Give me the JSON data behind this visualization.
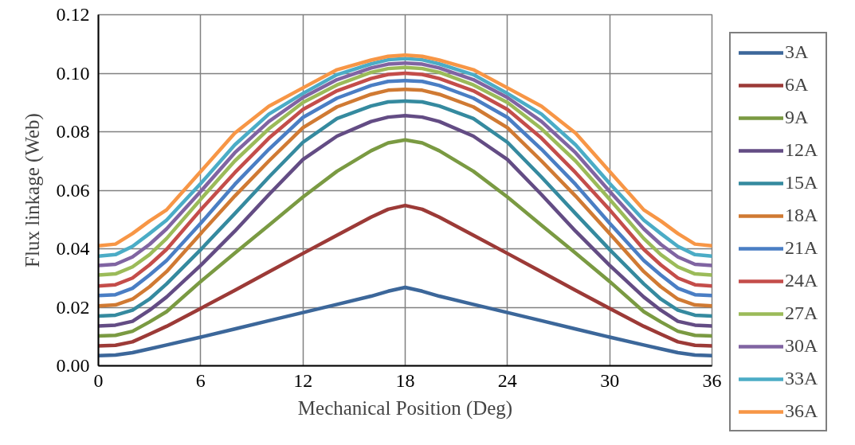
{
  "chart_data": {
    "type": "line",
    "xlabel": "Mechanical Position (Deg)",
    "ylabel": "Flux linkage (Web)",
    "x": [
      0,
      1,
      2,
      3,
      4,
      6,
      8,
      10,
      12,
      14,
      16,
      17,
      18,
      19,
      20,
      22,
      24,
      26,
      28,
      30,
      32,
      33,
      34,
      35,
      36
    ],
    "xlim": [
      0,
      36
    ],
    "xticks": [
      0,
      6,
      12,
      18,
      24,
      30,
      36
    ],
    "ylim": [
      0,
      0.12
    ],
    "yticks": [
      {
        "value": 0,
        "label": "0.00"
      },
      {
        "value": 0.02,
        "label": "0.02"
      },
      {
        "value": 0.04,
        "label": "0.04"
      },
      {
        "value": 0.06,
        "label": "0.06"
      },
      {
        "value": 0.08,
        "label": "0.08"
      },
      {
        "value": 0.1,
        "label": "0.10"
      },
      {
        "value": 0.12,
        "label": "0.12"
      }
    ],
    "grid": true,
    "legend": "right",
    "marker": "none",
    "line_style": "solid",
    "series": [
      {
        "name": "3A",
        "color": "#3c679a",
        "values": [
          0.0035,
          0.0037,
          0.0045,
          0.0058,
          0.0071,
          0.0098,
          0.0126,
          0.0154,
          0.0182,
          0.021,
          0.0238,
          0.0255,
          0.0268,
          0.0255,
          0.0238,
          0.021,
          0.0182,
          0.0154,
          0.0126,
          0.0098,
          0.0071,
          0.0058,
          0.0045,
          0.0037,
          0.0035
        ]
      },
      {
        "name": "6A",
        "color": "#9c3a37",
        "values": [
          0.0068,
          0.007,
          0.0082,
          0.0108,
          0.0135,
          0.0196,
          0.0258,
          0.0321,
          0.0384,
          0.0446,
          0.0508,
          0.0535,
          0.0548,
          0.0535,
          0.0508,
          0.0446,
          0.0384,
          0.0321,
          0.0258,
          0.0196,
          0.0135,
          0.0108,
          0.0082,
          0.007,
          0.0068
        ]
      },
      {
        "name": "9A",
        "color": "#7a9a42",
        "values": [
          0.0102,
          0.0104,
          0.0118,
          0.015,
          0.0185,
          0.0288,
          0.0385,
          0.048,
          0.0577,
          0.0665,
          0.0735,
          0.0762,
          0.0772,
          0.0762,
          0.0735,
          0.0665,
          0.0577,
          0.048,
          0.0385,
          0.0288,
          0.0185,
          0.015,
          0.0118,
          0.0104,
          0.0102
        ]
      },
      {
        "name": "12A",
        "color": "#634c84",
        "values": [
          0.0136,
          0.0139,
          0.0152,
          0.019,
          0.0235,
          0.0343,
          0.046,
          0.0585,
          0.0705,
          0.0785,
          0.0835,
          0.085,
          0.0855,
          0.085,
          0.0835,
          0.0785,
          0.0705,
          0.0585,
          0.046,
          0.0343,
          0.0235,
          0.019,
          0.0152,
          0.0139,
          0.0136
        ]
      },
      {
        "name": "15A",
        "color": "#358a9f",
        "values": [
          0.017,
          0.0173,
          0.019,
          0.0228,
          0.028,
          0.0397,
          0.052,
          0.0645,
          0.0764,
          0.0845,
          0.0888,
          0.0902,
          0.0905,
          0.0902,
          0.0888,
          0.0845,
          0.0764,
          0.0645,
          0.052,
          0.0397,
          0.028,
          0.0228,
          0.019,
          0.0173,
          0.017
        ]
      },
      {
        "name": "18A",
        "color": "#d07a33",
        "values": [
          0.0205,
          0.0208,
          0.0228,
          0.027,
          0.0322,
          0.0452,
          0.058,
          0.07,
          0.0814,
          0.0885,
          0.0928,
          0.0942,
          0.0945,
          0.0942,
          0.0928,
          0.0885,
          0.0814,
          0.07,
          0.058,
          0.0452,
          0.0322,
          0.027,
          0.0228,
          0.0208,
          0.0205
        ]
      },
      {
        "name": "21A",
        "color": "#4a7ec4",
        "values": [
          0.024,
          0.0243,
          0.0265,
          0.031,
          0.036,
          0.0487,
          0.062,
          0.074,
          0.0849,
          0.0915,
          0.0958,
          0.0972,
          0.0975,
          0.0972,
          0.0958,
          0.0915,
          0.0849,
          0.074,
          0.062,
          0.0487,
          0.036,
          0.031,
          0.0265,
          0.0243,
          0.024
        ]
      },
      {
        "name": "24A",
        "color": "#c44d4a",
        "values": [
          0.0273,
          0.0277,
          0.03,
          0.0345,
          0.0398,
          0.0533,
          0.066,
          0.0778,
          0.0876,
          0.094,
          0.0982,
          0.0996,
          0.1,
          0.0996,
          0.0982,
          0.094,
          0.0876,
          0.0778,
          0.066,
          0.0533,
          0.0398,
          0.0345,
          0.03,
          0.0277,
          0.0273
        ]
      },
      {
        "name": "27A",
        "color": "#9bbb59",
        "values": [
          0.031,
          0.0314,
          0.0338,
          0.038,
          0.0435,
          0.0569,
          0.07,
          0.081,
          0.09,
          0.096,
          0.1003,
          0.1016,
          0.102,
          0.1016,
          0.1003,
          0.096,
          0.09,
          0.081,
          0.07,
          0.0569,
          0.0435,
          0.038,
          0.0338,
          0.0314,
          0.031
        ]
      },
      {
        "name": "30A",
        "color": "#8064a2",
        "values": [
          0.0343,
          0.0347,
          0.0372,
          0.0415,
          0.0468,
          0.0596,
          0.0728,
          0.0835,
          0.0917,
          0.0978,
          0.1018,
          0.1031,
          0.1035,
          0.1031,
          0.1018,
          0.0978,
          0.0917,
          0.0835,
          0.0728,
          0.0596,
          0.0468,
          0.0415,
          0.0372,
          0.0347,
          0.0343
        ]
      },
      {
        "name": "33A",
        "color": "#4bacc6",
        "values": [
          0.0375,
          0.038,
          0.0408,
          0.0452,
          0.0498,
          0.0623,
          0.0755,
          0.086,
          0.0931,
          0.0995,
          0.1032,
          0.1046,
          0.105,
          0.1046,
          0.1032,
          0.0995,
          0.0931,
          0.086,
          0.0755,
          0.0623,
          0.0498,
          0.0452,
          0.0408,
          0.038,
          0.0375
        ]
      },
      {
        "name": "36A",
        "color": "#f79646",
        "values": [
          0.041,
          0.0416,
          0.0452,
          0.0495,
          0.0533,
          0.0664,
          0.0795,
          0.0887,
          0.095,
          0.1012,
          0.1045,
          0.1058,
          0.1062,
          0.1058,
          0.1045,
          0.1012,
          0.095,
          0.0887,
          0.0795,
          0.0664,
          0.0533,
          0.0495,
          0.0452,
          0.0416,
          0.041
        ]
      }
    ]
  }
}
